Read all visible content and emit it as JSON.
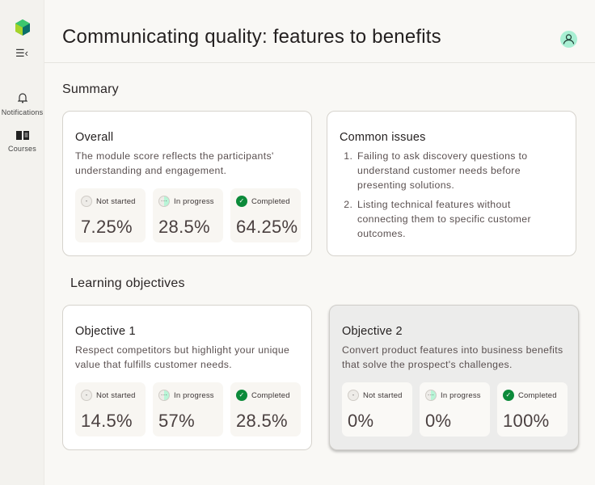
{
  "sidebar": {
    "items": [
      {
        "label": "Notifications",
        "icon": "bell-icon"
      },
      {
        "label": "Courses",
        "icon": "book-icon"
      }
    ]
  },
  "header": {
    "title": "Communicating quality: features to benefits"
  },
  "summary": {
    "heading": "Summary",
    "overall": {
      "title": "Overall",
      "description": "The module score reflects the participants' understanding and engagement.",
      "stats": [
        {
          "label": "Not started",
          "value": "7.25%"
        },
        {
          "label": "In progress",
          "value": "28.5%"
        },
        {
          "label": "Completed",
          "value": "64.25%"
        }
      ]
    },
    "common_issues": {
      "title": "Common issues",
      "items": [
        "Failing to ask discovery questions to understand customer needs before presenting solutions.",
        "Listing technical features without connecting them to specific customer outcomes."
      ]
    }
  },
  "objectives": {
    "heading": "Learning objectives",
    "items": [
      {
        "title": "Objective 1",
        "description": "Respect competitors but highlight your unique value that fulfills customer needs.",
        "stats": [
          {
            "label": "Not started",
            "value": "14.5%"
          },
          {
            "label": "In progress",
            "value": "57%"
          },
          {
            "label": "Completed",
            "value": "28.5%"
          }
        ]
      },
      {
        "title": "Objective 2",
        "description": "Convert product features into business benefits that solve the prospect's challenges.",
        "stats": [
          {
            "label": "Not started",
            "value": "0%"
          },
          {
            "label": "In progress",
            "value": "0%"
          },
          {
            "label": "Completed",
            "value": "100%"
          }
        ]
      }
    ]
  },
  "colors": {
    "completed": "#0c8a3a",
    "in_progress": "#b8f5d7",
    "avatar": "#a8efd3"
  }
}
